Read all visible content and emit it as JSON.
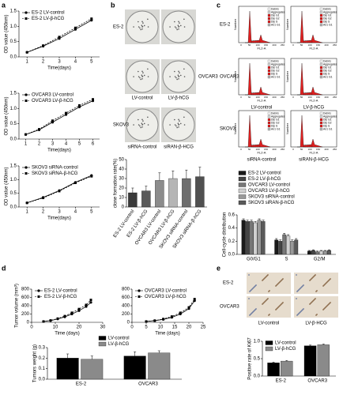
{
  "panels": [
    "a",
    "b",
    "c",
    "d",
    "e"
  ],
  "colony_images": {
    "rows": [
      "ES-2",
      "OVCAR3",
      "SKOV3"
    ],
    "columns": [
      "LV-control",
      "LV-β-hCG",
      "siRNA-control",
      "siRAN-β-HCG"
    ]
  },
  "flow_cytometry": {
    "rows": [
      "ES-2",
      "OVCAR3",
      "SKOV3"
    ],
    "columns": [
      "LV-control",
      "LV-β-hCG",
      "siRNA-control",
      "siRAN-β-HCG"
    ],
    "x_label": "FL2-A",
    "y_label": "Number",
    "x_ticks": [
      0,
      50,
      100,
      150,
      200,
      250
    ],
    "legend": [
      "Debris",
      "Aggregates",
      "Dip G1",
      "Dip G2",
      "Dip S",
      "An1 G1"
    ]
  },
  "ihc_images": {
    "rows": [
      "ES-2",
      "OVCAR3"
    ],
    "columns": [
      "LV-control",
      "LV-β-HCG"
    ]
  },
  "chart_data": [
    {
      "type": "line",
      "x_label": "Time(days)",
      "y_label": "OD value (450nm)",
      "x": [
        1,
        2,
        3,
        4,
        5
      ],
      "xlim": [
        0.5,
        5.5
      ],
      "xticks": [
        1,
        2,
        3,
        4,
        5
      ],
      "ylim": [
        0,
        1.5
      ],
      "yticks": [
        {
          "value": 0,
          "label": "0.0"
        },
        0.5,
        {
          "value": 1,
          "label": "1.0"
        },
        1.5
      ],
      "legend": "upper-left",
      "series": [
        {
          "name": "ES-2 LV-control",
          "color": "#000000",
          "marker": "circle",
          "line_style": "solid",
          "values": [
            0.15,
            0.35,
            0.6,
            0.9,
            1.2
          ]
        },
        {
          "name": "ES-2 LV-β-hCG",
          "color": "#000000",
          "marker": "square",
          "line_style": "dashed",
          "values": [
            0.15,
            0.37,
            0.65,
            0.95,
            1.25
          ]
        }
      ]
    },
    {
      "type": "line",
      "x_label": "Time(days)",
      "y_label": "OD value (450nm)",
      "x": [
        1,
        2,
        3,
        4,
        5,
        6
      ],
      "xlim": [
        0.5,
        6.5
      ],
      "xticks": [
        1,
        2,
        3,
        4,
        5,
        6
      ],
      "ylim": [
        0,
        1.5
      ],
      "yticks": [
        {
          "value": 0,
          "label": "0.0"
        },
        0.5,
        {
          "value": 1,
          "label": "1.0"
        },
        1.5
      ],
      "legend": "upper-left",
      "series": [
        {
          "name": "OVCAR3 LV-control",
          "color": "#000000",
          "marker": "circle",
          "line_style": "solid",
          "values": [
            0.15,
            0.3,
            0.55,
            0.8,
            1.05,
            1.25
          ]
        },
        {
          "name": "OVCAR3 LV-β-hCG",
          "color": "#000000",
          "marker": "square",
          "line_style": "dashed",
          "values": [
            0.15,
            0.32,
            0.6,
            0.85,
            1.1,
            1.3
          ]
        }
      ]
    },
    {
      "type": "line",
      "x_label": "Time(days)",
      "y_label": "OD value (450nm)",
      "x": [
        1,
        2,
        3,
        4,
        5
      ],
      "xlim": [
        0.5,
        5.5
      ],
      "xticks": [
        1,
        2,
        3,
        4,
        5
      ],
      "ylim": [
        0,
        1.5
      ],
      "yticks": [
        {
          "value": 0,
          "label": "0.0"
        },
        0.5,
        {
          "value": 1,
          "label": "1.0"
        },
        1.5
      ],
      "legend": "upper-left",
      "series": [
        {
          "name": "SKOV3 siRNA-control",
          "color": "#000000",
          "marker": "circle",
          "line_style": "solid",
          "values": [
            0.15,
            0.35,
            0.6,
            0.9,
            1.15
          ]
        },
        {
          "name": "SKOV3 siRNA-β-hCG",
          "color": "#000000",
          "marker": "square",
          "line_style": "dashed",
          "values": [
            0.15,
            0.33,
            0.58,
            0.88,
            1.12
          ]
        }
      ]
    },
    {
      "type": "bar",
      "y_label": "clone formation rate(%)",
      "categories": [
        "ES-2 LV-control",
        "ES-2 LV-β-hCG",
        "OVCAR3 LV-control",
        "OVCAR3 LV-β-hCG",
        "SKOV3 siRNA-control",
        "SKOV3 siRNA-β-hCG"
      ],
      "values": [
        15,
        17,
        28,
        30,
        30,
        32
      ],
      "errors": [
        5,
        5,
        8,
        8,
        9,
        10
      ],
      "colors": [
        "#3a3a3a",
        "#5a5a5a",
        "#8c8c8c",
        "#b5b5b5",
        "#6e6e6e",
        "#505050"
      ],
      "ylim": [
        0,
        50
      ],
      "yticks": [
        0,
        10,
        20,
        30,
        40,
        50
      ]
    },
    {
      "type": "bar",
      "y_label": "Cell-cycle distribution",
      "categories": [
        "G0/G1",
        "S",
        "G2/M"
      ],
      "ylim": [
        0,
        0.6
      ],
      "yticks": [
        {
          "value": 0,
          "label": "0.0"
        },
        0.2,
        0.4,
        0.6
      ],
      "legend": "above",
      "series": [
        {
          "name": "ES-2 LV-control",
          "color": "#1a1a1a",
          "values": [
            0.52,
            0.22,
            0.05
          ],
          "errors": [
            0.02,
            0.02,
            0.01
          ]
        },
        {
          "name": "ES-2 LV-β-hCG",
          "color": "#444444",
          "values": [
            0.5,
            0.2,
            0.06
          ],
          "errors": [
            0.02,
            0.02,
            0.01
          ]
        },
        {
          "name": "OVCAR3 LV-control",
          "color": "#777777",
          "values": [
            0.5,
            0.3,
            0.04
          ],
          "errors": [
            0.02,
            0.02,
            0.01
          ]
        },
        {
          "name": "OVCAR3 LV-β-hCG",
          "color": "#d0d0d0",
          "values": [
            0.48,
            0.28,
            0.05
          ],
          "errors": [
            0.02,
            0.02,
            0.01
          ]
        },
        {
          "name": "SKOV3 siRNA-control",
          "color": "#999999",
          "values": [
            0.52,
            0.2,
            0.05
          ],
          "errors": [
            0.02,
            0.02,
            0.01
          ]
        },
        {
          "name": "SKOV3 siRAN-β-hCG",
          "color": "#5a5a5a",
          "values": [
            0.5,
            0.22,
            0.06
          ],
          "errors": [
            0.02,
            0.02,
            0.01
          ]
        }
      ]
    },
    {
      "type": "line",
      "x_label": "Time (days)",
      "y_label": "Tumor volume (mm³)",
      "x": [
        5,
        8,
        11,
        14,
        17,
        20,
        23,
        25
      ],
      "xlim": [
        0,
        30
      ],
      "xticks": [
        0,
        10,
        20,
        30
      ],
      "ylim": [
        0,
        800
      ],
      "yticks": [
        0,
        200,
        400,
        600,
        800
      ],
      "legend": "upper-left",
      "series": [
        {
          "name": "ES-2 LV-control",
          "color": "#000000",
          "marker": "circle",
          "line_style": "solid",
          "values": [
            20,
            40,
            80,
            130,
            200,
            280,
            380,
            480
          ]
        },
        {
          "name": "ES-2 LV-β-hCG",
          "color": "#000000",
          "marker": "square",
          "line_style": "dashed",
          "values": [
            20,
            45,
            90,
            150,
            230,
            320,
            420,
            540
          ]
        }
      ]
    },
    {
      "type": "line",
      "x_label": "Time (days)",
      "x": [
        5,
        8,
        11,
        14,
        17,
        20,
        22
      ],
      "xlim": [
        0,
        25
      ],
      "xticks": [
        0,
        5,
        10,
        15,
        20,
        25
      ],
      "ylim": [
        0,
        800
      ],
      "yticks": [
        0,
        200,
        400,
        600,
        800
      ],
      "legend": "upper-left",
      "series": [
        {
          "name": "OVCAR3 LV-control",
          "color": "#000000",
          "marker": "circle",
          "line_style": "solid",
          "values": [
            20,
            40,
            70,
            120,
            200,
            330,
            520
          ]
        },
        {
          "name": "OVCAR3 LV-β-hCG",
          "color": "#000000",
          "marker": "square",
          "line_style": "dashed",
          "values": [
            20,
            40,
            80,
            140,
            230,
            360,
            560
          ]
        }
      ]
    },
    {
      "type": "bar",
      "y_label": "Tumors weight (g)",
      "categories": [
        "ES-2",
        "OVCAR3"
      ],
      "ylim": [
        0,
        0.3
      ],
      "yticks": [
        {
          "value": 0,
          "label": "0.0"
        },
        0.1,
        0.2,
        0.3
      ],
      "legend": "upper-center",
      "series": [
        {
          "name": "LV-control",
          "color": "#000000",
          "values": [
            0.2,
            0.22
          ],
          "errors": [
            0.04,
            0.04
          ]
        },
        {
          "name": "LV-β-hCG",
          "color": "#8a8a8a",
          "values": [
            0.19,
            0.25
          ],
          "errors": [
            0.03,
            0.02
          ]
        }
      ]
    },
    {
      "type": "bar",
      "y_label": "Positive rate of Ki67",
      "categories": [
        "ES-2",
        "OVCAR3"
      ],
      "ylim": [
        0,
        1
      ],
      "yticks": [
        {
          "value": 0,
          "label": "0.0"
        },
        0.5,
        {
          "value": 1,
          "label": "1.0"
        }
      ],
      "legend": "upper-left",
      "series": [
        {
          "name": "LV-control",
          "color": "#000000",
          "values": [
            0.38,
            0.87
          ],
          "errors": [
            0.02,
            0.02
          ]
        },
        {
          "name": "LV-β-hCG",
          "color": "#8a8a8a",
          "values": [
            0.43,
            0.9
          ],
          "errors": [
            0.02,
            0.02
          ]
        }
      ]
    }
  ]
}
